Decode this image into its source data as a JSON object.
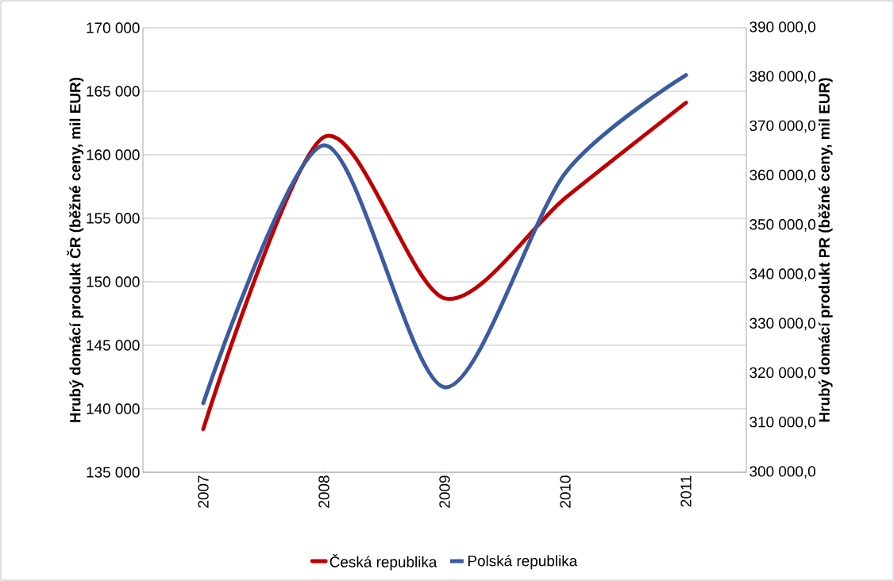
{
  "chart_data": {
    "type": "line",
    "categories": [
      "2007",
      "2008",
      "2009",
      "2010",
      "2011"
    ],
    "ylabel": "Hrubý domácí produkt ČR (běžné ceny, mil EUR)",
    "y2label": "Hrubý domácí produkt PR (běžné ceny, mil EUR)",
    "series": [
      {
        "name": "Česká republika",
        "color": "#c00000",
        "values": [
          138400,
          161400,
          148700,
          156600,
          164100
        ]
      },
      {
        "name": "Polská republika",
        "color": "#3a5ba0",
        "values": [
          314000,
          366200,
          317200,
          360600,
          380400
        ],
        "axis": "y2"
      }
    ],
    "ylim": [
      135000,
      170000
    ],
    "yticks": [
      {
        "value": 135000,
        "label": "135 000"
      },
      {
        "value": 140000,
        "label": "140 000"
      },
      {
        "value": 145000,
        "label": "145 000"
      },
      {
        "value": 150000,
        "label": "150 000"
      },
      {
        "value": 155000,
        "label": "155 000"
      },
      {
        "value": 160000,
        "label": "160 000"
      },
      {
        "value": 165000,
        "label": "165 000"
      },
      {
        "value": 170000,
        "label": "170 000"
      }
    ],
    "y2lim": [
      300000,
      390000
    ],
    "y2ticks": [
      {
        "value": 300000,
        "label": "300 000,0"
      },
      {
        "value": 310000,
        "label": "310 000,0"
      },
      {
        "value": 320000,
        "label": "320 000,0"
      },
      {
        "value": 330000,
        "label": "330 000,0"
      },
      {
        "value": 340000,
        "label": "340 000,0"
      },
      {
        "value": 350000,
        "label": "350 000,0"
      },
      {
        "value": 360000,
        "label": "360 000,0"
      },
      {
        "value": 370000,
        "label": "370 000,0"
      },
      {
        "value": 380000,
        "label": "380 000,0"
      },
      {
        "value": 390000,
        "label": "390 000,0"
      }
    ],
    "grid": "y",
    "legend": "bottom",
    "marker": "none",
    "line_style": "solid"
  }
}
